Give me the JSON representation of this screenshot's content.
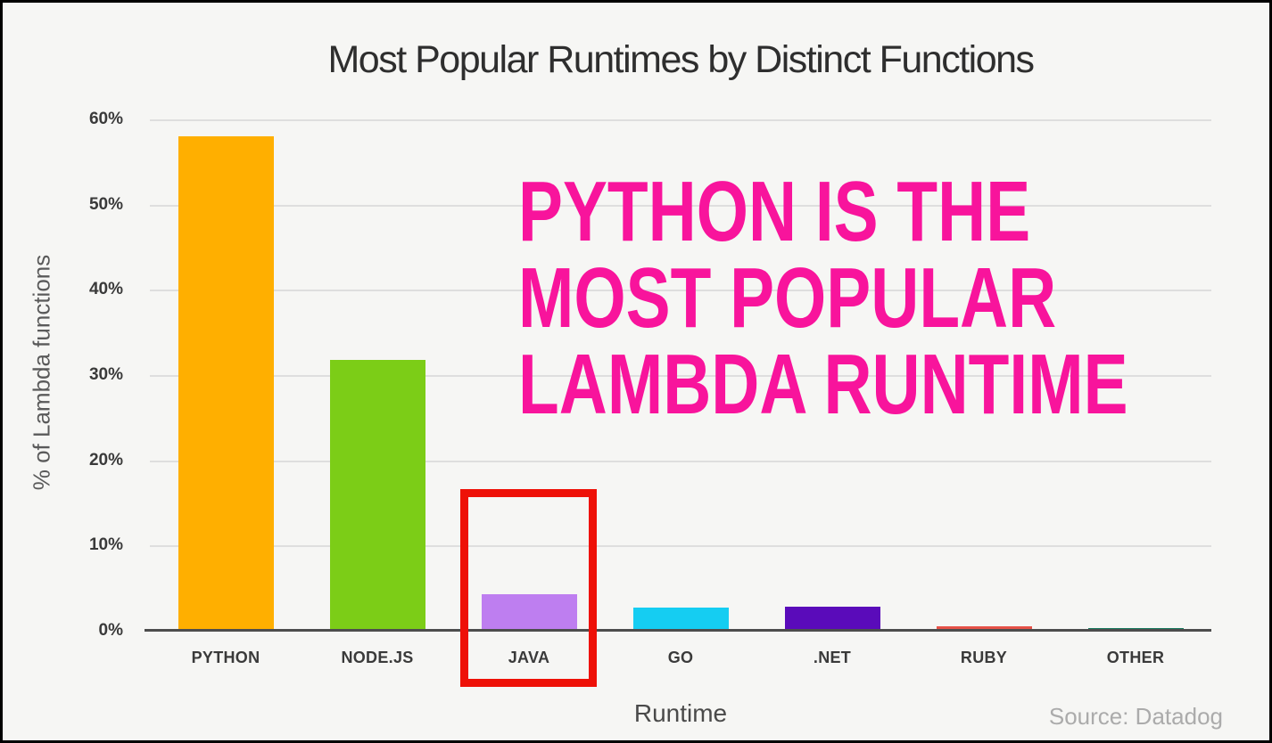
{
  "title": "Most Popular Runtimes by Distinct Functions",
  "source": "Source: Datadog",
  "headline": {
    "lines": [
      "PYTHON IS THE",
      "MOST POPULAR",
      "LAMBDA RUNTIME"
    ],
    "color": "#F8149C"
  },
  "annotation": {
    "shape": "rectangle",
    "target_category": "JAVA",
    "color": "#EE1108"
  },
  "colors": {
    "background": "#F6F6F4",
    "gridline": "#DEDEDE",
    "axis_line": "#4D4D4D",
    "title_text": "#2E2E2E",
    "tick_text": "#3A3A3A"
  },
  "chart_data": {
    "type": "bar",
    "title": "Most Popular Runtimes by Distinct Functions",
    "xlabel": "Runtime",
    "ylabel": "% of Lambda functions",
    "categories": [
      "PYTHON",
      "NODE.JS",
      "JAVA",
      "GO",
      ".NET",
      "RUBY",
      "OTHER"
    ],
    "values": [
      58,
      31.8,
      4.3,
      2.7,
      2.8,
      0.5,
      0.3
    ],
    "unit": "%",
    "bar_colors": [
      "#FFAF00",
      "#7CCD17",
      "#BE7EF0",
      "#15CDF2",
      "#5A0BBA",
      "#E65248",
      "#18795E"
    ],
    "ylim": [
      0,
      60
    ],
    "yticks": [
      "0%",
      "10%",
      "20%",
      "30%",
      "40%",
      "50%",
      "60%"
    ],
    "ytick_values": [
      0,
      10,
      20,
      30,
      40,
      50,
      60
    ],
    "grid": true,
    "legend": false
  }
}
